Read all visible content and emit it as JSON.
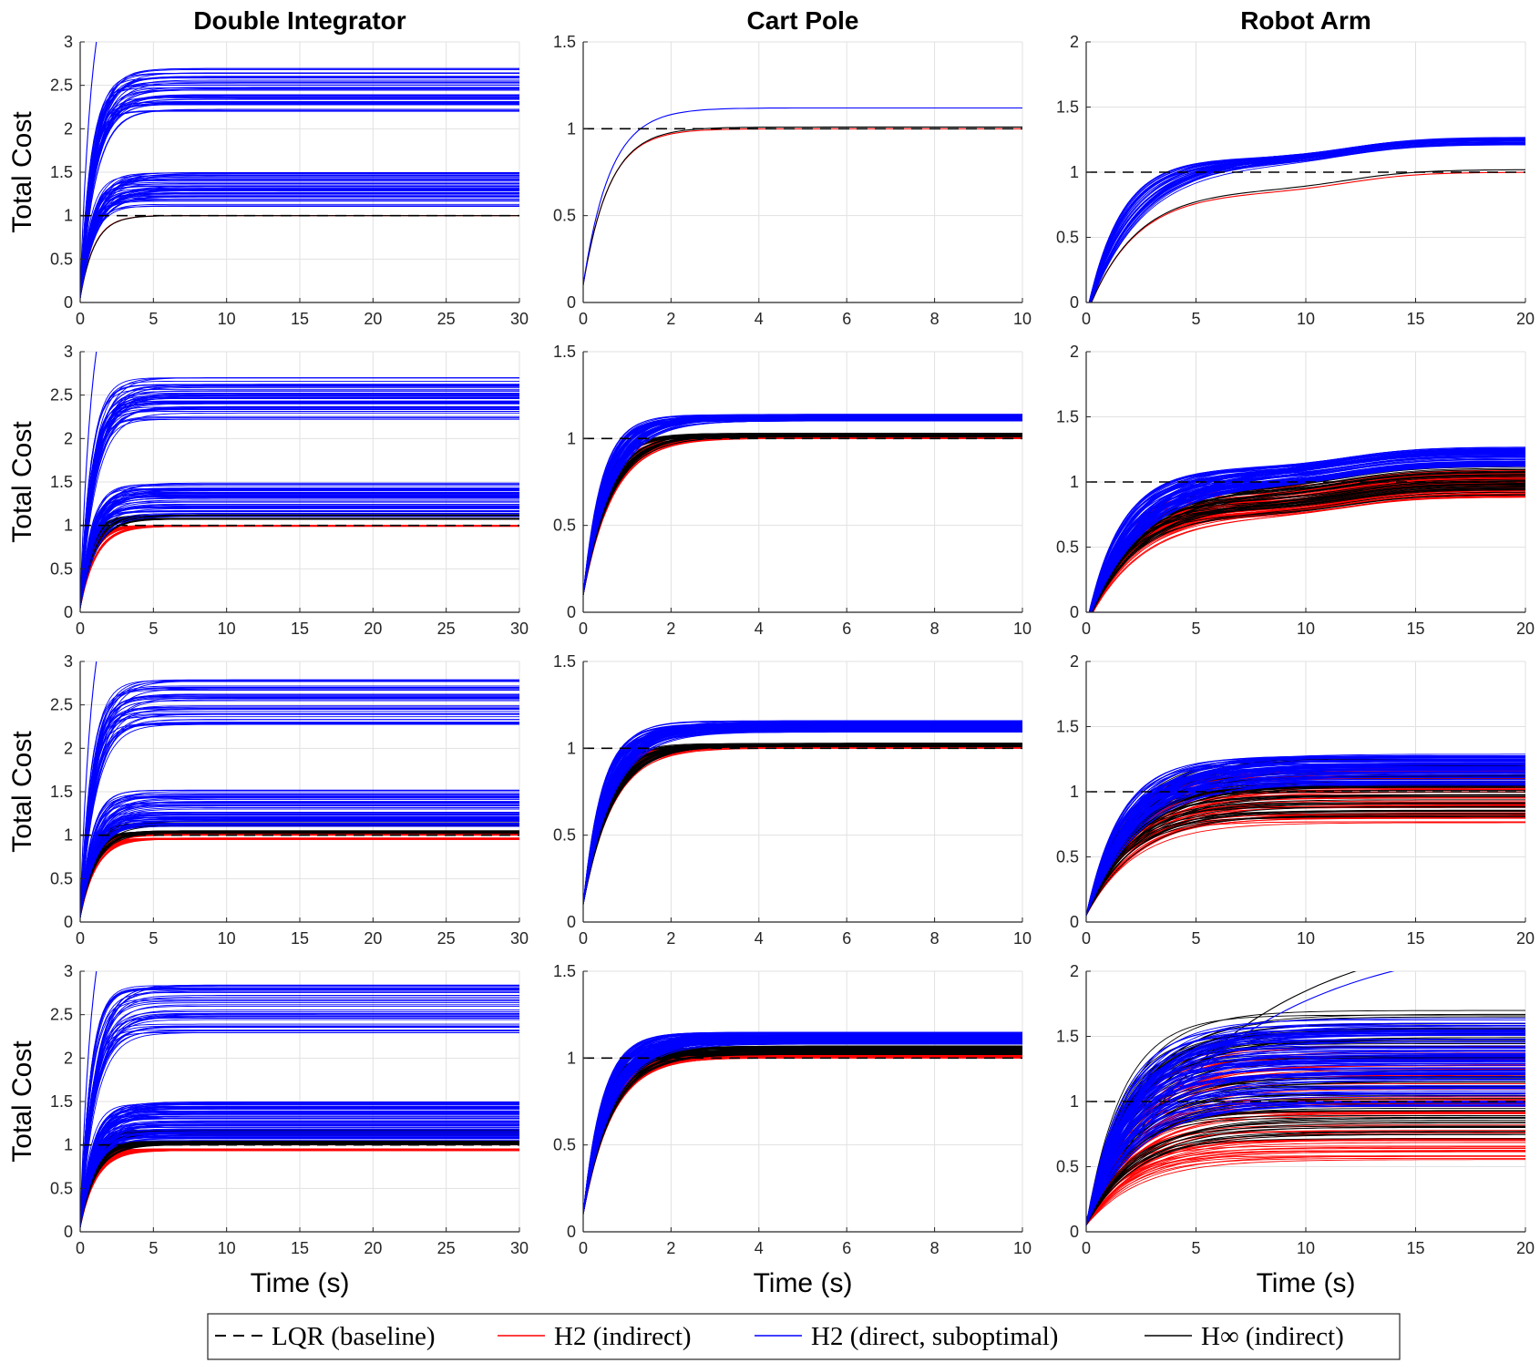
{
  "figure": {
    "columns": [
      {
        "title": "Double Integrator",
        "xlim": [
          0,
          30
        ],
        "xticks": [
          0,
          5,
          10,
          15,
          20,
          25,
          30
        ],
        "ylim": [
          0,
          3
        ],
        "yticks": [
          0,
          0.5,
          1,
          1.5,
          2,
          2.5,
          3
        ]
      },
      {
        "title": "Cart Pole",
        "xlim": [
          0,
          10
        ],
        "xticks": [
          0,
          2,
          4,
          6,
          8,
          10
        ],
        "ylim": [
          0,
          1.5
        ],
        "yticks": [
          0,
          0.5,
          1,
          1.5
        ]
      },
      {
        "title": "Robot Arm",
        "xlim": [
          0,
          20
        ],
        "xticks": [
          0,
          5,
          10,
          15,
          20
        ],
        "ylim": [
          0,
          2
        ],
        "yticks": [
          0,
          0.5,
          1,
          1.5,
          2
        ]
      }
    ],
    "ylabel": "Total Cost",
    "xlabel": "Time (s)",
    "grid": true,
    "legend": {
      "placement": "bottom-center",
      "entries": [
        {
          "label": "LQR (baseline)",
          "color": "#000000",
          "style": "dashed"
        },
        {
          "label": "H2 (indirect)",
          "color": "#ff0000",
          "style": "solid"
        },
        {
          "label": "H2 (direct, suboptimal)",
          "color": "#0000ff",
          "style": "solid"
        },
        {
          "label": "H∞ (indirect)",
          "color": "#000000",
          "style": "solid"
        }
      ]
    }
  },
  "chart_data": [
    {
      "type": "line",
      "row": 1,
      "col": 1,
      "system": "Double Integrator",
      "baseline": 1,
      "series": [
        {
          "name": "H2 (indirect)",
          "color": "#ff0000",
          "count": 1,
          "final_min": 1.0,
          "final_max": 1.0
        },
        {
          "name": "H2 (direct, suboptimal)",
          "color": "#0000ff",
          "count": 100,
          "final_min": 1.1,
          "final_max": 2.7,
          "outliers": [
            4.0
          ]
        },
        {
          "name": "H∞ (indirect)",
          "color": "#000000",
          "count": 1,
          "final_min": 1.0,
          "final_max": 1.0
        }
      ]
    },
    {
      "type": "line",
      "row": 1,
      "col": 2,
      "system": "Cart Pole",
      "baseline": 1,
      "series": [
        {
          "name": "H2 (indirect)",
          "color": "#ff0000",
          "count": 1,
          "final_min": 1.0,
          "final_max": 1.0
        },
        {
          "name": "H2 (direct, suboptimal)",
          "color": "#0000ff",
          "count": 1,
          "final_min": 1.12,
          "final_max": 1.12
        },
        {
          "name": "H∞ (indirect)",
          "color": "#000000",
          "count": 1,
          "final_min": 1.01,
          "final_max": 1.01
        }
      ]
    },
    {
      "type": "line",
      "row": 1,
      "col": 3,
      "system": "Robot Arm",
      "baseline": 1,
      "series": [
        {
          "name": "H2 (indirect)",
          "color": "#ff0000",
          "count": 1,
          "final_min": 1.0,
          "final_max": 1.0
        },
        {
          "name": "H2 (direct, suboptimal)",
          "color": "#0000ff",
          "count": 40,
          "final_min": 1.21,
          "final_max": 1.27
        },
        {
          "name": "H∞ (indirect)",
          "color": "#000000",
          "count": 1,
          "final_min": 1.02,
          "final_max": 1.02
        }
      ]
    },
    {
      "type": "line",
      "row": 2,
      "col": 1,
      "system": "Double Integrator",
      "baseline": 1,
      "series": [
        {
          "name": "H2 (indirect)",
          "color": "#ff0000",
          "count": 20,
          "final_min": 0.99,
          "final_max": 1.0
        },
        {
          "name": "H2 (direct, suboptimal)",
          "color": "#0000ff",
          "count": 100,
          "final_min": 1.1,
          "final_max": 2.7,
          "outliers": [
            4.0
          ]
        },
        {
          "name": "H∞ (indirect)",
          "color": "#000000",
          "count": 20,
          "final_min": 1.07,
          "final_max": 1.12
        }
      ]
    },
    {
      "type": "line",
      "row": 2,
      "col": 2,
      "system": "Cart Pole",
      "baseline": 1,
      "series": [
        {
          "name": "H2 (indirect)",
          "color": "#ff0000",
          "count": 20,
          "final_min": 1.0,
          "final_max": 1.01
        },
        {
          "name": "H2 (direct, suboptimal)",
          "color": "#0000ff",
          "count": 60,
          "final_min": 1.1,
          "final_max": 1.14
        },
        {
          "name": "H∞ (indirect)",
          "color": "#000000",
          "count": 20,
          "final_min": 1.01,
          "final_max": 1.03
        }
      ]
    },
    {
      "type": "line",
      "row": 2,
      "col": 3,
      "system": "Robot Arm",
      "baseline": 1,
      "series": [
        {
          "name": "H2 (indirect)",
          "color": "#ff0000",
          "count": 60,
          "final_min": 0.88,
          "final_max": 1.1
        },
        {
          "name": "H2 (direct, suboptimal)",
          "color": "#0000ff",
          "count": 80,
          "final_min": 1.12,
          "final_max": 1.27
        },
        {
          "name": "H∞ (indirect)",
          "color": "#000000",
          "count": 40,
          "final_min": 0.9,
          "final_max": 1.14
        }
      ]
    },
    {
      "type": "line",
      "row": 3,
      "col": 1,
      "system": "Double Integrator",
      "baseline": 1,
      "series": [
        {
          "name": "H2 (indirect)",
          "color": "#ff0000",
          "count": 40,
          "final_min": 0.95,
          "final_max": 1.02
        },
        {
          "name": "H2 (direct, suboptimal)",
          "color": "#0000ff",
          "count": 100,
          "final_min": 1.1,
          "final_max": 2.8,
          "outliers": [
            4.0
          ]
        },
        {
          "name": "H∞ (indirect)",
          "color": "#000000",
          "count": 40,
          "final_min": 1.02,
          "final_max": 1.15
        }
      ]
    },
    {
      "type": "line",
      "row": 3,
      "col": 2,
      "system": "Cart Pole",
      "baseline": 1,
      "series": [
        {
          "name": "H2 (indirect)",
          "color": "#ff0000",
          "count": 40,
          "final_min": 1.0,
          "final_max": 1.02
        },
        {
          "name": "H2 (direct, suboptimal)",
          "color": "#0000ff",
          "count": 80,
          "final_min": 1.09,
          "final_max": 1.16
        },
        {
          "name": "H∞ (indirect)",
          "color": "#000000",
          "count": 40,
          "final_min": 1.01,
          "final_max": 1.03
        }
      ]
    },
    {
      "type": "line",
      "row": 3,
      "col": 3,
      "system": "Robot Arm",
      "baseline": 1,
      "series": [
        {
          "name": "H2 (indirect)",
          "color": "#ff0000",
          "count": 60,
          "final_min": 0.76,
          "final_max": 1.2
        },
        {
          "name": "H2 (direct, suboptimal)",
          "color": "#0000ff",
          "count": 80,
          "final_min": 1.05,
          "final_max": 1.3
        },
        {
          "name": "H∞ (indirect)",
          "color": "#000000",
          "count": 60,
          "final_min": 0.8,
          "final_max": 1.28
        }
      ]
    },
    {
      "type": "line",
      "row": 4,
      "col": 1,
      "system": "Double Integrator",
      "baseline": 1,
      "series": [
        {
          "name": "H2 (indirect)",
          "color": "#ff0000",
          "count": 60,
          "final_min": 0.93,
          "final_max": 1.03
        },
        {
          "name": "H2 (direct, suboptimal)",
          "color": "#0000ff",
          "count": 120,
          "final_min": 1.05,
          "final_max": 2.85,
          "outliers": [
            4.0
          ]
        },
        {
          "name": "H∞ (indirect)",
          "color": "#000000",
          "count": 60,
          "final_min": 1.0,
          "final_max": 1.18
        }
      ]
    },
    {
      "type": "line",
      "row": 4,
      "col": 2,
      "system": "Cart Pole",
      "baseline": 1,
      "series": [
        {
          "name": "H2 (indirect)",
          "color": "#ff0000",
          "count": 60,
          "final_min": 1.0,
          "final_max": 1.04
        },
        {
          "name": "H2 (direct, suboptimal)",
          "color": "#0000ff",
          "count": 100,
          "final_min": 1.08,
          "final_max": 1.15
        },
        {
          "name": "H∞ (indirect)",
          "color": "#000000",
          "count": 60,
          "final_min": 1.02,
          "final_max": 1.07
        }
      ]
    },
    {
      "type": "line",
      "row": 4,
      "col": 3,
      "system": "Robot Arm",
      "baseline": 1,
      "series": [
        {
          "name": "H2 (indirect)",
          "color": "#ff0000",
          "count": 70,
          "final_min": 0.53,
          "final_max": 1.45
        },
        {
          "name": "H2 (direct, suboptimal)",
          "color": "#0000ff",
          "count": 100,
          "final_min": 0.95,
          "final_max": 1.65,
          "outliers": [
            2.3
          ]
        },
        {
          "name": "H∞ (indirect)",
          "color": "#000000",
          "count": 70,
          "final_min": 0.7,
          "final_max": 1.7,
          "outliers": [
            2.4
          ]
        }
      ]
    }
  ]
}
